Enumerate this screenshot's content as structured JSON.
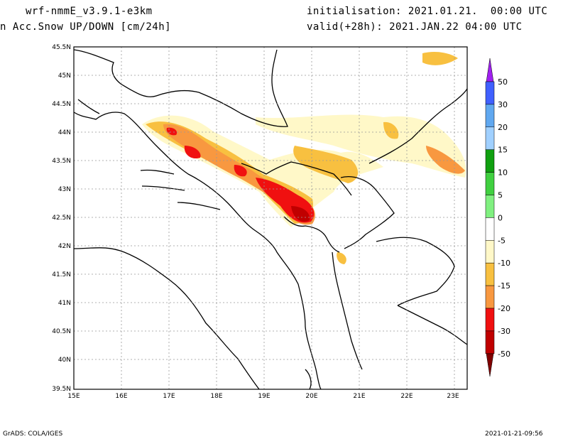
{
  "header": {
    "model": "wrf-nmmE_v3.9.1-e3km",
    "variable": "n Acc.Snow UP/DOWN [cm/24h]",
    "init": "initialisation: 2021.01.21.  00:00 UTC",
    "valid": "valid(+28h): 2021.JAN.22 04:00 UTC"
  },
  "map": {
    "lat_labels": [
      "45.5N",
      "45N",
      "44.5N",
      "44N",
      "43.5N",
      "43N",
      "42.5N",
      "42N",
      "41.5N",
      "41N",
      "40.5N",
      "40N",
      "39.5N"
    ],
    "lon_labels": [
      "15E",
      "16E",
      "17E",
      "18E",
      "19E",
      "20E",
      "21E",
      "22E",
      "23E"
    ]
  },
  "legend": {
    "labels": [
      "50",
      "30",
      "20",
      "15",
      "10",
      "5",
      "0",
      "-5",
      "-10",
      "-15",
      "-20",
      "-30",
      "-50"
    ],
    "colors": [
      "#a020f0",
      "#4060ff",
      "#60a8f0",
      "#a0d0ff",
      "#10a010",
      "#40d040",
      "#80f080",
      "#ffffff",
      "#fff8c8",
      "#f8c040",
      "#f89840",
      "#f01010",
      "#c00000",
      "#800000"
    ]
  },
  "footer": {
    "left": "GrADS: COLA/IGES",
    "right": "2021-01-21-09:56"
  }
}
